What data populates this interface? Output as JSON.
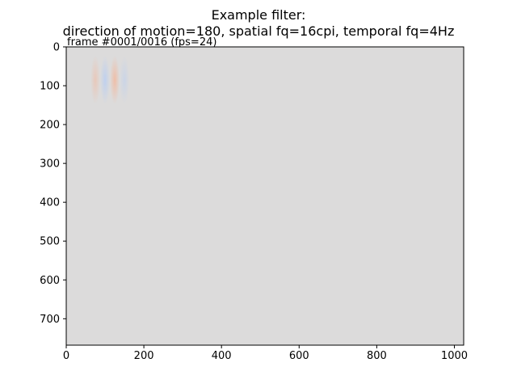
{
  "title": {
    "line1": "Example filter:",
    "line2": "direction of motion=180, spatial fq=16cpi, temporal fq=4Hz"
  },
  "frame_label": "frame #0001/0016 (fps=24)",
  "colors": {
    "background_gray": "#dcdbdb",
    "positive": "#f2b99f",
    "negative": "#b6cdf5"
  },
  "chart_data": {
    "type": "heatmap",
    "image_size": [
      1024,
      768
    ],
    "xlim": [
      0,
      1024
    ],
    "ylim": [
      768,
      0
    ],
    "xticks": [
      0,
      200,
      400,
      600,
      800,
      1000
    ],
    "yticks": [
      0,
      100,
      200,
      300,
      400,
      500,
      600,
      700
    ],
    "grid": false,
    "colormap": "coolwarm",
    "filter_blobs": [
      {
        "x": 75,
        "y": 85,
        "polarity": "positive",
        "amplitude": 0.55
      },
      {
        "x": 100,
        "y": 85,
        "polarity": "negative",
        "amplitude": 0.75
      },
      {
        "x": 125,
        "y": 85,
        "polarity": "positive",
        "amplitude": 0.85
      },
      {
        "x": 150,
        "y": 85,
        "polarity": "negative",
        "amplitude": 0.45
      }
    ]
  }
}
